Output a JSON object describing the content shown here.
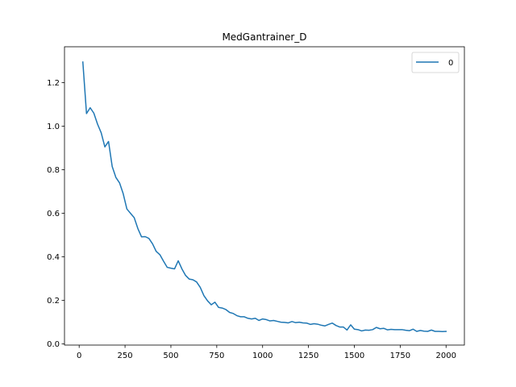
{
  "chart_data": {
    "type": "line",
    "title": "MedGantrainer_D",
    "xlabel": "",
    "ylabel": "",
    "xlim": [
      -80,
      2100
    ],
    "ylim": [
      -0.005,
      1.365
    ],
    "xticks": [
      0,
      250,
      500,
      750,
      1000,
      1250,
      1500,
      1750,
      2000
    ],
    "xtick_labels": [
      "0",
      "250",
      "500",
      "750",
      "1000",
      "1250",
      "1500",
      "1750",
      "2000"
    ],
    "yticks": [
      0.0,
      0.2,
      0.4,
      0.6,
      0.8,
      1.0,
      1.2
    ],
    "ytick_labels": [
      "0.0",
      "0.2",
      "0.4",
      "0.6",
      "0.8",
      "1.0",
      "1.2"
    ],
    "grid": false,
    "legend_position": "top-right",
    "series_color": "#1f77b4",
    "series": [
      {
        "name": "0",
        "x": [
          20,
          40,
          60,
          80,
          100,
          120,
          140,
          160,
          180,
          200,
          220,
          240,
          260,
          280,
          300,
          320,
          340,
          360,
          380,
          400,
          420,
          440,
          460,
          480,
          500,
          520,
          540,
          560,
          580,
          600,
          620,
          640,
          660,
          680,
          700,
          720,
          740,
          760,
          780,
          800,
          820,
          840,
          860,
          880,
          900,
          920,
          940,
          960,
          980,
          1000,
          1020,
          1040,
          1060,
          1080,
          1100,
          1120,
          1140,
          1160,
          1180,
          1200,
          1220,
          1240,
          1260,
          1280,
          1300,
          1320,
          1340,
          1360,
          1380,
          1400,
          1420,
          1440,
          1460,
          1480,
          1500,
          1520,
          1540,
          1560,
          1580,
          1600,
          1620,
          1640,
          1660,
          1680,
          1700,
          1720,
          1740,
          1760,
          1780,
          1800,
          1820,
          1840,
          1860,
          1880,
          1900,
          1920,
          1940,
          1960,
          1980,
          2000
        ],
        "values": [
          1.295,
          1.058,
          1.085,
          1.06,
          1.01,
          0.97,
          0.905,
          0.93,
          0.815,
          0.765,
          0.74,
          0.69,
          0.62,
          0.6,
          0.58,
          0.53,
          0.492,
          0.493,
          0.485,
          0.46,
          0.425,
          0.41,
          0.38,
          0.352,
          0.348,
          0.345,
          0.382,
          0.345,
          0.315,
          0.298,
          0.295,
          0.285,
          0.26,
          0.222,
          0.198,
          0.18,
          0.192,
          0.168,
          0.165,
          0.158,
          0.145,
          0.14,
          0.13,
          0.125,
          0.125,
          0.118,
          0.115,
          0.118,
          0.108,
          0.115,
          0.112,
          0.106,
          0.108,
          0.104,
          0.1,
          0.099,
          0.097,
          0.103,
          0.098,
          0.1,
          0.097,
          0.096,
          0.09,
          0.093,
          0.091,
          0.086,
          0.083,
          0.09,
          0.096,
          0.085,
          0.078,
          0.078,
          0.064,
          0.088,
          0.068,
          0.066,
          0.06,
          0.064,
          0.063,
          0.066,
          0.076,
          0.07,
          0.072,
          0.065,
          0.067,
          0.066,
          0.066,
          0.066,
          0.063,
          0.061,
          0.068,
          0.058,
          0.062,
          0.059,
          0.058,
          0.064,
          0.058,
          0.058,
          0.057,
          0.058
        ]
      }
    ]
  }
}
